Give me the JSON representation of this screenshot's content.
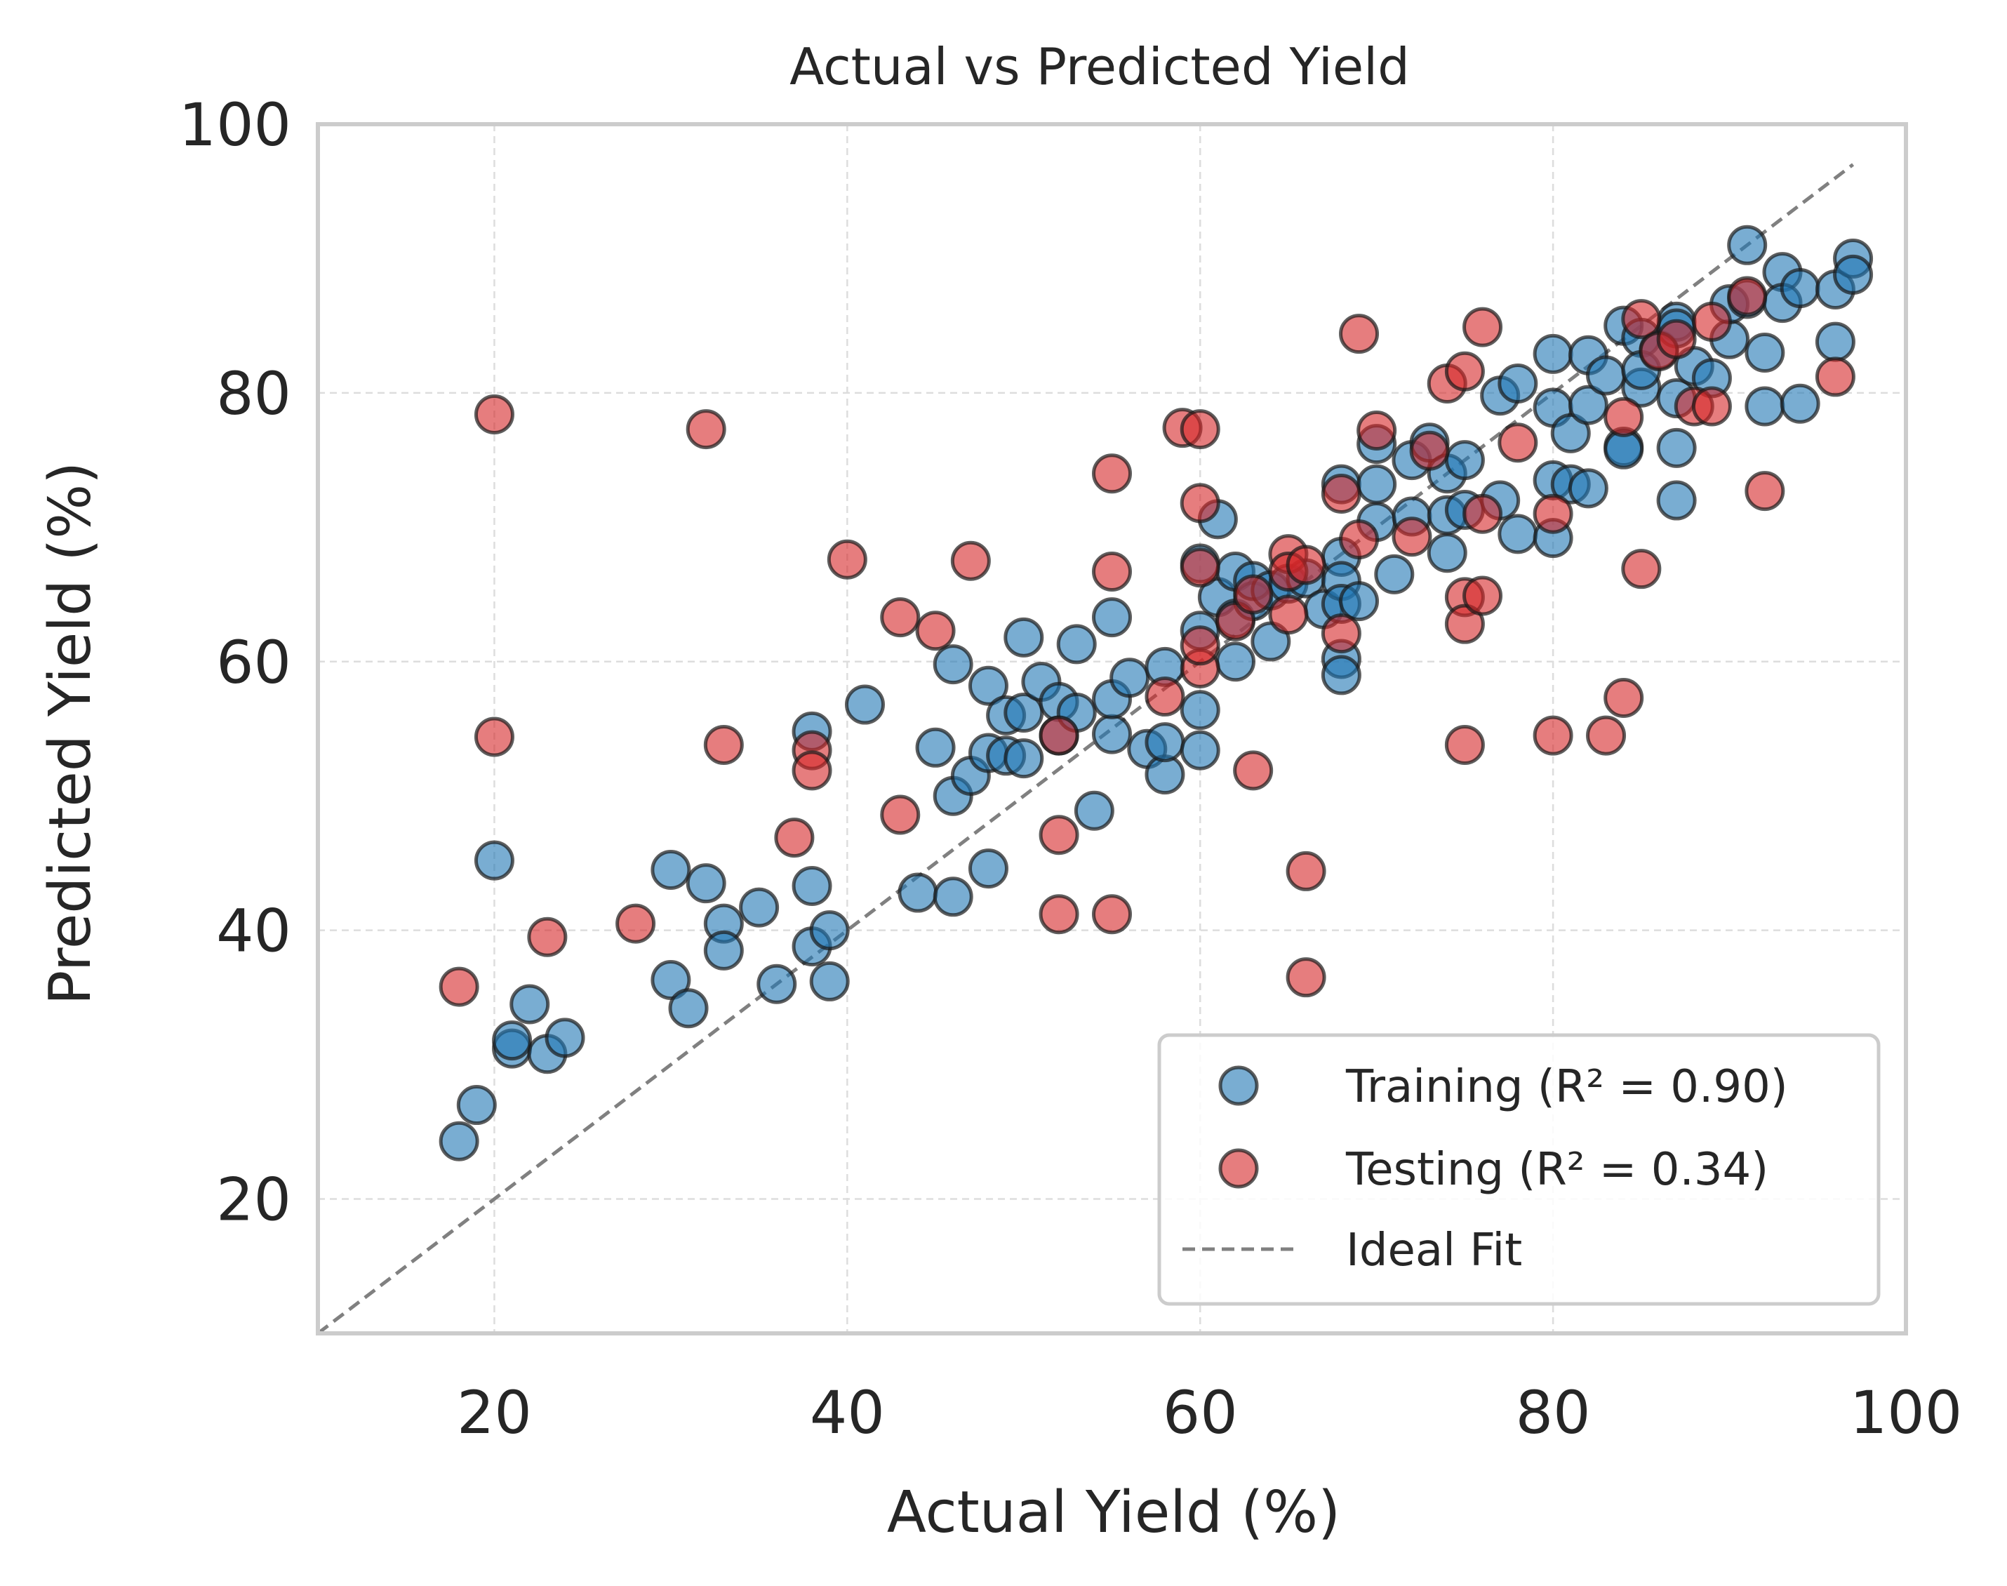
{
  "chart_data": {
    "type": "scatter",
    "title": "Actual vs Predicted Yield",
    "xlabel": "Actual Yield (%)",
    "ylabel": "Predicted Yield (%)",
    "xlim": [
      10,
      100
    ],
    "ylim": [
      10,
      100
    ],
    "x_ticks": [
      "20",
      "40",
      "60",
      "80",
      "100"
    ],
    "y_ticks": [
      "20",
      "40",
      "60",
      "80",
      "100"
    ],
    "grid": true,
    "legend_position": "bottom-right",
    "colors": {
      "training": "#1f77b4",
      "testing": "#d62728",
      "ideal": "#808080",
      "point_edge": "#1a1a1a"
    },
    "series": [
      {
        "name": "Training (R² = 0.90)",
        "points": [
          [
            18,
            24.3
          ],
          [
            19,
            27
          ],
          [
            20,
            45.2
          ],
          [
            21,
            31.2
          ],
          [
            21,
            31.8
          ],
          [
            22,
            34.5
          ],
          [
            23,
            30.8
          ],
          [
            24,
            32
          ],
          [
            30,
            44.5
          ],
          [
            30,
            36.3
          ],
          [
            31,
            34.2
          ],
          [
            32,
            43.5
          ],
          [
            33,
            40.5
          ],
          [
            33,
            38.5
          ],
          [
            35,
            41.7
          ],
          [
            36,
            36
          ],
          [
            38,
            54.8
          ],
          [
            38,
            43.3
          ],
          [
            38,
            38.8
          ],
          [
            39,
            40
          ],
          [
            39,
            36.2
          ],
          [
            41,
            56.8
          ],
          [
            44,
            42.8
          ],
          [
            45,
            53.6
          ],
          [
            46,
            42.5
          ],
          [
            46,
            50
          ],
          [
            46,
            59.8
          ],
          [
            47,
            51.5
          ],
          [
            48,
            44.6
          ],
          [
            48,
            53.2
          ],
          [
            48,
            58.2
          ],
          [
            49,
            53
          ],
          [
            49,
            56
          ],
          [
            50,
            52.8
          ],
          [
            50,
            61.8
          ],
          [
            50,
            56.2
          ],
          [
            51,
            58.5
          ],
          [
            52,
            57
          ],
          [
            52,
            54.5
          ],
          [
            53,
            56.2
          ],
          [
            53,
            61.3
          ],
          [
            54,
            48.9
          ],
          [
            55,
            54.6
          ],
          [
            55,
            57.2
          ],
          [
            55,
            63.3
          ],
          [
            56,
            58.8
          ],
          [
            57,
            53.5
          ],
          [
            58,
            59.6
          ],
          [
            58,
            51.6
          ],
          [
            58,
            54
          ],
          [
            60,
            53.4
          ],
          [
            60,
            56.4
          ],
          [
            60,
            67.3
          ],
          [
            60,
            62.3
          ],
          [
            61,
            64.8
          ],
          [
            61,
            70.6
          ],
          [
            62,
            66.7
          ],
          [
            62,
            63.2
          ],
          [
            62,
            60
          ],
          [
            63,
            64.5
          ],
          [
            63,
            66
          ],
          [
            64,
            61.5
          ],
          [
            64,
            65.3
          ],
          [
            65,
            65.8
          ],
          [
            66,
            66.2
          ],
          [
            67,
            63.9
          ],
          [
            68,
            73.2
          ],
          [
            68,
            67.8
          ],
          [
            68,
            66
          ],
          [
            68,
            64.3
          ],
          [
            68,
            60.2
          ],
          [
            68,
            59
          ],
          [
            69,
            64.5
          ],
          [
            70,
            70.4
          ],
          [
            70,
            73.2
          ],
          [
            70,
            76.2
          ],
          [
            71,
            66.5
          ],
          [
            72,
            70.8
          ],
          [
            72,
            75
          ],
          [
            73,
            76.3
          ],
          [
            74,
            74
          ],
          [
            74,
            68.1
          ],
          [
            74,
            70.9
          ],
          [
            75,
            75
          ],
          [
            75,
            71.3
          ],
          [
            77,
            72
          ],
          [
            77,
            79.8
          ],
          [
            78,
            80.7
          ],
          [
            78,
            69.5
          ],
          [
            80,
            82.9
          ],
          [
            80,
            78.9
          ],
          [
            80,
            73.5
          ],
          [
            80,
            69.2
          ],
          [
            81,
            73.2
          ],
          [
            81,
            77
          ],
          [
            82,
            82.8
          ],
          [
            82,
            72.9
          ],
          [
            82,
            79.1
          ],
          [
            83,
            81.3
          ],
          [
            84,
            85
          ],
          [
            84,
            76
          ],
          [
            84,
            75.8
          ],
          [
            85,
            80.4
          ],
          [
            85,
            84.1
          ],
          [
            85,
            81.7
          ],
          [
            86,
            83.2
          ],
          [
            87,
            85.3
          ],
          [
            87,
            84.8
          ],
          [
            87,
            79.6
          ],
          [
            87,
            75.9
          ],
          [
            87,
            72
          ],
          [
            88,
            82
          ],
          [
            89,
            81.1
          ],
          [
            90,
            84
          ],
          [
            90,
            86.6
          ],
          [
            91,
            91
          ],
          [
            91,
            87
          ],
          [
            92,
            83
          ],
          [
            92,
            79
          ],
          [
            93,
            89
          ],
          [
            93,
            86.7
          ],
          [
            94,
            87.8
          ],
          [
            94,
            79.2
          ],
          [
            96,
            87.7
          ],
          [
            96,
            83.8
          ],
          [
            97,
            90
          ],
          [
            97,
            88.8
          ]
        ]
      },
      {
        "name": "Testing (R² = 0.34)",
        "points": [
          [
            18,
            35.8
          ],
          [
            20,
            78.4
          ],
          [
            20,
            54.4
          ],
          [
            23,
            39.5
          ],
          [
            28,
            40.5
          ],
          [
            32,
            77.3
          ],
          [
            33,
            53.8
          ],
          [
            37,
            46.9
          ],
          [
            38,
            53.4
          ],
          [
            38,
            51.9
          ],
          [
            40,
            67.6
          ],
          [
            43,
            63.3
          ],
          [
            43,
            48.6
          ],
          [
            45,
            62.3
          ],
          [
            47,
            67.5
          ],
          [
            52,
            47.1
          ],
          [
            52,
            41.2
          ],
          [
            52,
            54.5
          ],
          [
            55,
            74
          ],
          [
            55,
            66.7
          ],
          [
            55,
            41.2
          ],
          [
            58,
            57.4
          ],
          [
            59,
            77.4
          ],
          [
            60,
            77.3
          ],
          [
            60,
            71.8
          ],
          [
            60,
            67
          ],
          [
            60,
            59.5
          ],
          [
            60,
            61.2
          ],
          [
            62,
            63
          ],
          [
            63,
            65
          ],
          [
            63,
            51.9
          ],
          [
            65,
            68
          ],
          [
            65,
            66.7
          ],
          [
            65,
            63.5
          ],
          [
            66,
            67.2
          ],
          [
            66,
            44.4
          ],
          [
            66,
            36.5
          ],
          [
            68,
            72.5
          ],
          [
            68,
            62.1
          ],
          [
            69,
            84.4
          ],
          [
            69,
            69.1
          ],
          [
            70,
            77.2
          ],
          [
            72,
            69.3
          ],
          [
            73,
            75.7
          ],
          [
            74,
            80.7
          ],
          [
            75,
            81.6
          ],
          [
            75,
            64.8
          ],
          [
            75,
            62.8
          ],
          [
            75,
            53.8
          ],
          [
            76,
            84.9
          ],
          [
            76,
            71
          ],
          [
            76,
            64.9
          ],
          [
            78,
            76.3
          ],
          [
            80,
            71
          ],
          [
            80,
            54.5
          ],
          [
            83,
            54.5
          ],
          [
            84,
            78.2
          ],
          [
            84,
            57.3
          ],
          [
            85,
            85.5
          ],
          [
            85,
            66.9
          ],
          [
            86,
            83.1
          ],
          [
            87,
            84
          ],
          [
            88,
            79
          ],
          [
            89,
            85.3
          ],
          [
            89,
            79
          ],
          [
            91,
            87.2
          ],
          [
            92,
            72.7
          ],
          [
            96,
            81.2
          ]
        ]
      },
      {
        "name": "Ideal Fit",
        "points": [
          [
            10,
            10
          ],
          [
            97,
            97
          ]
        ]
      }
    ]
  }
}
